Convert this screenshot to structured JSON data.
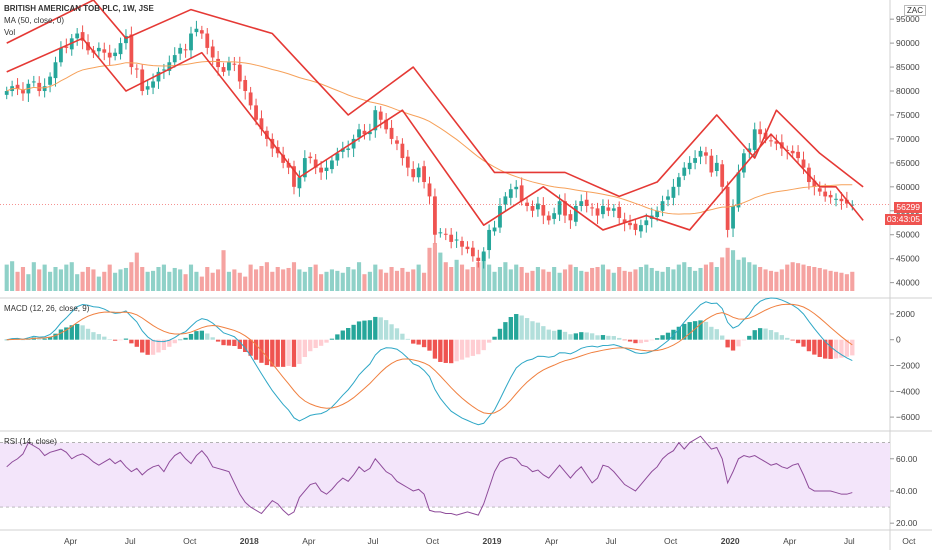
{
  "header": {
    "symbol_line": "BRITISH AMERICAN TOB PLC, 1W, JSE",
    "ma_label": "MA (50, close, 0)",
    "vol_label": "Vol",
    "currency_badge": "ZAC"
  },
  "price_tags": {
    "last_price": "56299",
    "countdown": "03:43:05",
    "last_color": "#ef5350",
    "countdown_color": "#ef5350"
  },
  "macd_panel": {
    "label": "MACD (12, 26, close, 9)",
    "y_ticks": [
      "2000",
      "0",
      "−2000",
      "−4000",
      "−6000"
    ]
  },
  "rsi_panel": {
    "label": "RSI (14, close)",
    "y_ticks": [
      "60.00",
      "40.00",
      "20.00"
    ]
  },
  "x_ticks": [
    "Apr",
    "Jul",
    "Oct",
    "2018",
    "Apr",
    "Jul",
    "Oct",
    "2019",
    "Apr",
    "Jul",
    "Oct",
    "2020",
    "Apr",
    "Jul",
    "Oct"
  ],
  "colors": {
    "up": "#26a69a",
    "down": "#ef5350",
    "up_vol": "#8fd1c8",
    "down_vol": "#f5a3a1",
    "ma": "#f6a15a",
    "macd": "#2ea7c6",
    "signal": "#f08040",
    "hist_up": "#26a69a",
    "hist_up_light": "#b2dfdb",
    "hist_down": "#ef5350",
    "hist_down_light": "#ffcdd2",
    "rsi": "#8e4b9a",
    "rsi_band": "#f3e5fa",
    "pattern": "#e53935"
  },
  "chart_data": [
    {
      "type": "candlestick",
      "title": "BRITISH AMERICAN TOB PLC, 1W, JSE",
      "ylim": [
        37000,
        99000
      ],
      "y_ticks": [
        40000,
        45000,
        50000,
        55000,
        60000,
        65000,
        70000,
        75000,
        80000,
        85000,
        90000,
        95000
      ],
      "close": [
        80000,
        81000,
        80500,
        79500,
        81500,
        82000,
        80000,
        81000,
        83000,
        86000,
        89000,
        89000,
        91000,
        92000,
        90500,
        88500,
        88000,
        89000,
        88000,
        87000,
        88000,
        90000,
        91500,
        85000,
        84500,
        80000,
        81000,
        82000,
        84000,
        84500,
        86000,
        87500,
        89000,
        88500,
        92000,
        93000,
        92000,
        89000,
        87000,
        85000,
        84000,
        86000,
        85500,
        82000,
        80000,
        77000,
        74000,
        72000,
        70000,
        68000,
        67000,
        65000,
        64000,
        60000,
        62000,
        66000,
        66000,
        64000,
        63000,
        64000,
        65500,
        67000,
        68000,
        68000,
        70000,
        72000,
        71000,
        71500,
        76000,
        74000,
        72000,
        70000,
        69000,
        66000,
        64000,
        62000,
        64000,
        61000,
        58000,
        50000,
        50500,
        50000,
        48500,
        49000,
        47500,
        47000,
        45500,
        44500,
        46500,
        51000,
        51500,
        56000,
        58000,
        59500,
        60000,
        57000,
        56000,
        55000,
        56500,
        54000,
        53000,
        54500,
        57000,
        54000,
        53000,
        56000,
        57000,
        56000,
        55500,
        54000,
        56000,
        55000,
        55500,
        53500,
        52500,
        52000,
        51000,
        52000,
        53000,
        54000,
        55000,
        57000,
        58000,
        60000,
        62000,
        64000,
        65000,
        66000,
        67500,
        66500,
        63000,
        65000,
        60000,
        51000,
        56000,
        63000,
        67000,
        68000,
        72000,
        71000,
        70000,
        69500,
        69000,
        68000,
        67500,
        67000,
        66000,
        64000,
        61000,
        60000,
        59000,
        58000,
        57800,
        57500,
        57000,
        56500,
        56299
      ],
      "volume_relative": [
        0.55,
        0.62,
        0.4,
        0.5,
        0.35,
        0.6,
        0.45,
        0.55,
        0.4,
        0.5,
        0.45,
        0.55,
        0.6,
        0.35,
        0.4,
        0.5,
        0.45,
        0.3,
        0.4,
        0.55,
        0.38,
        0.45,
        0.48,
        0.6,
        0.8,
        0.5,
        0.4,
        0.42,
        0.5,
        0.55,
        0.4,
        0.48,
        0.45,
        0.35,
        0.55,
        0.4,
        0.3,
        0.5,
        0.38,
        0.45,
        0.85,
        0.4,
        0.45,
        0.38,
        0.3,
        0.55,
        0.45,
        0.52,
        0.6,
        0.4,
        0.5,
        0.45,
        0.48,
        0.6,
        0.45,
        0.4,
        0.5,
        0.55,
        0.35,
        0.4,
        0.45,
        0.42,
        0.38,
        0.5,
        0.45,
        0.6,
        0.35,
        0.4,
        0.55,
        0.45,
        0.38,
        0.5,
        0.42,
        0.48,
        0.4,
        0.45,
        0.55,
        0.38,
        0.9,
        1.0,
        0.8,
        0.6,
        0.5,
        0.65,
        0.55,
        0.45,
        0.5,
        0.6,
        0.8,
        0.55,
        0.4,
        0.5,
        0.6,
        0.45,
        0.55,
        0.5,
        0.38,
        0.42,
        0.5,
        0.45,
        0.4,
        0.5,
        0.38,
        0.45,
        0.55,
        0.5,
        0.42,
        0.4,
        0.48,
        0.5,
        0.55,
        0.45,
        0.38,
        0.5,
        0.42,
        0.4,
        0.45,
        0.5,
        0.55,
        0.48,
        0.42,
        0.4,
        0.5,
        0.45,
        0.55,
        0.6,
        0.5,
        0.42,
        0.48,
        0.55,
        0.6,
        0.5,
        0.7,
        0.9,
        0.85,
        0.65,
        0.7,
        0.6,
        0.55,
        0.5,
        0.45,
        0.42,
        0.4,
        0.45,
        0.55,
        0.6,
        0.58,
        0.55,
        0.52,
        0.5,
        0.48,
        0.45,
        0.42,
        0.4,
        0.38,
        0.35,
        0.4
      ],
      "ma50": "50-period simple moving average of close",
      "last_price": 56299
    },
    {
      "type": "macd",
      "title": "MACD (12, 26, close, 9)",
      "ylim": [
        -7000,
        3000
      ],
      "y_ticks": [
        2000,
        0,
        -2000,
        -4000,
        -6000
      ]
    },
    {
      "type": "line",
      "title": "RSI (14, close)",
      "ylim": [
        17,
        76
      ],
      "y_ticks": [
        60,
        40,
        20
      ],
      "bands": [
        30,
        70
      ],
      "values": [
        55,
        58,
        60,
        63,
        70,
        68,
        66,
        62,
        64,
        65,
        66,
        64,
        60,
        62,
        63,
        61,
        58,
        56,
        58,
        60,
        57,
        59,
        55,
        52,
        54,
        50,
        53,
        55,
        56,
        52,
        58,
        62,
        64,
        60,
        57,
        62,
        65,
        61,
        55,
        54,
        53,
        52,
        45,
        38,
        33,
        30,
        28,
        26,
        30,
        34,
        32,
        28,
        25,
        27,
        36,
        40,
        44,
        45,
        40,
        38,
        41,
        45,
        48,
        46,
        50,
        55,
        52,
        54,
        60,
        56,
        52,
        50,
        46,
        44,
        42,
        40,
        41,
        38,
        28,
        27,
        27,
        26,
        26,
        25,
        26,
        27,
        26,
        25,
        32,
        42,
        52,
        58,
        60,
        61,
        60,
        56,
        55,
        52,
        53,
        50,
        48,
        52,
        56,
        52,
        48,
        52,
        55,
        50,
        45,
        48,
        56,
        55,
        52,
        48,
        44,
        42,
        40,
        44,
        48,
        52,
        55,
        60,
        63,
        65,
        70,
        66,
        70,
        72,
        74,
        70,
        66,
        67,
        60,
        45,
        52,
        60,
        62,
        61,
        62,
        60,
        58,
        56,
        57,
        55,
        54,
        56,
        57,
        50,
        42,
        40,
        40,
        40,
        40,
        39,
        38,
        38,
        39
      ]
    }
  ]
}
